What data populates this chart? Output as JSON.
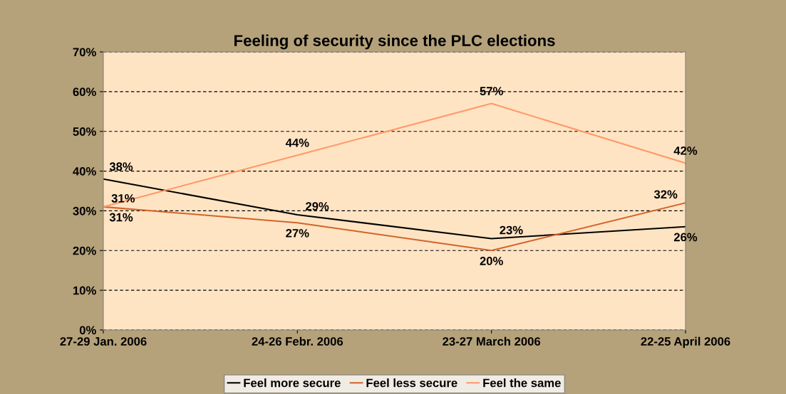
{
  "chart_data": {
    "type": "line",
    "title": "Feeling of security since the PLC elections",
    "categories": [
      "27-29 Jan. 2006",
      "24-26 Febr. 2006",
      "23-27 March 2006",
      "22-25 April 2006"
    ],
    "series": [
      {
        "name": "Feel more secure",
        "color": "#000000",
        "values": [
          38,
          29,
          23,
          26
        ],
        "value_labels": [
          "38%",
          "29%",
          "23%",
          "26%"
        ]
      },
      {
        "name": "Feel less secure",
        "color": "#d2642a",
        "values": [
          31,
          27,
          20,
          32
        ],
        "value_labels": [
          "31%",
          "27%",
          "20%",
          "32%"
        ]
      },
      {
        "name": "Feel the same",
        "color": "#ff9966",
        "values": [
          31,
          44,
          57,
          42
        ],
        "value_labels": [
          "31%",
          "44%",
          "57%",
          "42%"
        ]
      }
    ],
    "ylim": [
      0,
      70
    ],
    "yticks": [
      {
        "value": 0,
        "label": "0%"
      },
      {
        "value": 10,
        "label": "10%"
      },
      {
        "value": 20,
        "label": "20%"
      },
      {
        "value": 30,
        "label": "30%"
      },
      {
        "value": 40,
        "label": "40%"
      },
      {
        "value": 50,
        "label": "50%"
      },
      {
        "value": 60,
        "label": "60%"
      },
      {
        "value": 70,
        "label": "70%"
      }
    ],
    "grid": "y",
    "legend": "bottom",
    "marker": "none",
    "line_style": "solid"
  }
}
